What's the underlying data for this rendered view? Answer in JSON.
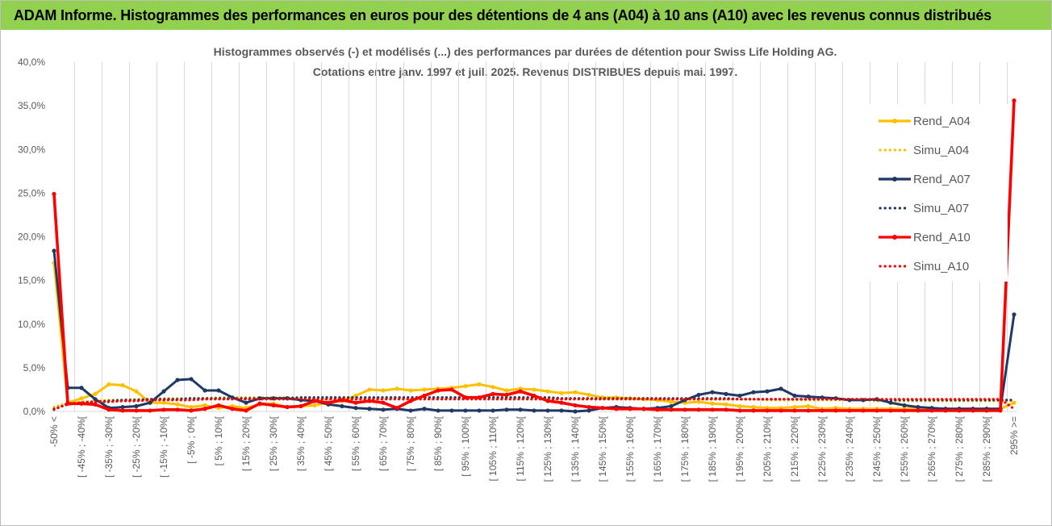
{
  "banner": {
    "title": "ADAM Informe. Histogrammes des performances en euros pour des détentions de 4 ans (A04) à 10 ans (A10) avec les revenus connus distribués"
  },
  "colors": {
    "banner_bg": "#92d050",
    "A04": "#ffc000",
    "A07": "#1f3864",
    "A10": "#ff0000",
    "grid": "#d9d9d9",
    "text": "#595959"
  },
  "chart_data": {
    "type": "line",
    "title_lines": [
      "Histogrammes observés (-) et modélisés (...) des performances par durées de détention pour Swiss Life Holding AG.",
      "Cotations entre janv. 1997 et juil. 2025. Revenus DISTRIBUES depuis mai. 1997."
    ],
    "y_ticks": [
      "0,0%",
      "5,0%",
      "10,0%",
      "15,0%",
      "20,0%",
      "25,0%",
      "30,0%",
      "35,0%",
      "40,0%"
    ],
    "ylim": [
      0,
      40
    ],
    "grid": "vertical",
    "legend_position": "right",
    "categories": [
      "-50% <",
      "[ -50% ; -45%[",
      "[ -45% ; -40%[",
      "[ -40% ; -35%[",
      "[ -35% ; -30%[",
      "[ -30% ; -25%[",
      "[ -25% ; -20%[",
      "[ -20% ; -15%[",
      "[ -15% ; -10%[",
      "[ -10% ; -5%[",
      "[ -5% ; 0%[",
      "[ 0% ; 5%[",
      "[ 5% ; 10%[",
      "[ 10% ; 15%[",
      "[ 15% ; 20%[",
      "[ 20% ; 25%[",
      "[ 25% ; 30%[",
      "[ 30% ; 35%[",
      "[ 35% ; 40%[",
      "[ 40% ; 45%[",
      "[ 45% ; 50%[",
      "[ 50% ; 55%[",
      "[ 55% ; 60%[",
      "[ 60% ; 65%[",
      "[ 65% ; 70%[",
      "[ 70% ; 75%[",
      "[ 75% ; 80%[",
      "[ 80% ; 85%[",
      "[ 85% ; 90%[",
      "[ 90% ; 95%[",
      "[ 95% ; 100%[",
      "[ 100% ; 105%[",
      "[ 105% ; 110%[",
      "[ 110% ; 115%[",
      "[ 115% ; 120%[",
      "[ 120% ; 125%[",
      "[ 125% ; 130%[",
      "[ 130% ; 135%[",
      "[ 135% ; 140%[",
      "[ 140% ; 145%[",
      "[ 145% ; 150%[",
      "[ 150% ; 155%[",
      "[ 155% ; 160%[",
      "[ 160% ; 165%[",
      "[ 165% ; 170%[",
      "[ 170% ; 175%[",
      "[ 175% ; 180%[",
      "[ 180% ; 185%[",
      "[ 185% ; 190%[",
      "[ 190% ; 195%[",
      "[ 195% ; 200%[",
      "[ 200% ; 205%[",
      "[ 205% ; 210%[",
      "[ 210% ; 215%[",
      "[ 215% ; 220%[",
      "[ 220% ; 225%[",
      "[ 225% ; 230%[",
      "[ 230% ; 235%[",
      "[ 235% ; 240%[",
      "[ 240% ; 245%[",
      "[ 245% ; 250%[",
      "[ 250% ; 255%[",
      "[ 255% ; 260%[",
      "[ 260% ; 265%[",
      "[ 265% ; 270%[",
      "[ 270% ; 275%[",
      "[ 275% ; 280%[",
      "[ 280% ; 285%[",
      "[ 285% ; 290%[",
      "[ 290% ; 295%[",
      "295% >="
    ],
    "series": [
      {
        "name": "Rend_A04",
        "style": "solid",
        "color": "#ffc000",
        "values": [
          17.0,
          1.0,
          1.5,
          2.0,
          3.1,
          3.0,
          2.3,
          1.0,
          1.0,
          0.8,
          0.5,
          0.7,
          0.4,
          0.6,
          0.4,
          0.8,
          0.9,
          0.5,
          0.6,
          0.7,
          1.0,
          1.2,
          1.8,
          2.5,
          2.4,
          2.6,
          2.4,
          2.5,
          2.6,
          2.7,
          2.9,
          3.1,
          2.8,
          2.4,
          2.6,
          2.5,
          2.3,
          2.1,
          2.2,
          1.9,
          1.6,
          1.6,
          1.5,
          1.4,
          1.3,
          1.1,
          1.0,
          1.1,
          0.9,
          0.8,
          0.6,
          0.5,
          0.4,
          0.4,
          0.5,
          0.6,
          0.3,
          0.4,
          0.3,
          0.3,
          0.3,
          0.3,
          0.3,
          0.3,
          0.3,
          0.3,
          0.3,
          0.3,
          0.3,
          0.3,
          1.0
        ]
      },
      {
        "name": "Simu_A04",
        "style": "dotted",
        "color": "#ffc000",
        "values": [
          0.5,
          1.0,
          1.1,
          1.2,
          1.3,
          1.3,
          1.4,
          1.4,
          1.5,
          1.5,
          1.5,
          1.5,
          1.6,
          1.6,
          1.6,
          1.6,
          1.6,
          1.6,
          1.6,
          1.6,
          1.6,
          1.6,
          1.6,
          1.6,
          1.6,
          1.6,
          1.6,
          1.6,
          1.6,
          1.6,
          1.6,
          1.6,
          1.6,
          1.6,
          1.6,
          1.6,
          1.6,
          1.5,
          1.5,
          1.5,
          1.5,
          1.5,
          1.5,
          1.5,
          1.5,
          1.4,
          1.4,
          1.4,
          1.4,
          1.4,
          1.4,
          1.4,
          1.3,
          1.3,
          1.3,
          1.3,
          1.3,
          1.3,
          1.3,
          1.3,
          1.2,
          1.2,
          1.2,
          1.2,
          1.2,
          1.2,
          1.2,
          1.2,
          1.2,
          1.2,
          1.2
        ]
      },
      {
        "name": "Rend_A07",
        "style": "solid",
        "color": "#1f3864",
        "values": [
          18.4,
          2.7,
          2.7,
          1.4,
          0.4,
          0.5,
          0.6,
          1.0,
          2.3,
          3.6,
          3.7,
          2.4,
          2.4,
          1.6,
          1.0,
          1.5,
          1.5,
          1.5,
          1.3,
          1.2,
          0.8,
          0.6,
          0.4,
          0.3,
          0.2,
          0.3,
          0.1,
          0.3,
          0.1,
          0.1,
          0.1,
          0.1,
          0.1,
          0.2,
          0.2,
          0.1,
          0.1,
          0.1,
          0.0,
          0.1,
          0.4,
          0.5,
          0.4,
          0.3,
          0.4,
          0.6,
          1.3,
          1.9,
          2.2,
          2.0,
          1.8,
          2.2,
          2.3,
          2.6,
          1.8,
          1.7,
          1.6,
          1.5,
          1.3,
          1.3,
          1.4,
          1.0,
          0.7,
          0.5,
          0.4,
          0.3,
          0.3,
          0.3,
          0.3,
          0.3,
          11.1
        ]
      },
      {
        "name": "Simu_A07",
        "style": "dotted",
        "color": "#1f3864",
        "values": [
          0.3,
          0.8,
          1.0,
          1.1,
          1.2,
          1.3,
          1.3,
          1.4,
          1.4,
          1.4,
          1.5,
          1.5,
          1.5,
          1.5,
          1.5,
          1.5,
          1.5,
          1.5,
          1.6,
          1.6,
          1.6,
          1.6,
          1.6,
          1.6,
          1.6,
          1.6,
          1.6,
          1.6,
          1.6,
          1.6,
          1.6,
          1.6,
          1.6,
          1.6,
          1.6,
          1.6,
          1.6,
          1.5,
          1.5,
          1.5,
          1.5,
          1.5,
          1.5,
          1.5,
          1.5,
          1.5,
          1.5,
          1.5,
          1.5,
          1.5,
          1.4,
          1.4,
          1.4,
          1.4,
          1.4,
          1.4,
          1.4,
          1.4,
          1.4,
          1.4,
          1.3,
          1.3,
          1.3,
          1.3,
          1.3,
          1.3,
          1.3,
          1.3,
          1.3,
          1.3,
          1.3
        ]
      },
      {
        "name": "Rend_A10",
        "style": "solid",
        "color": "#ff0000",
        "values": [
          24.9,
          0.9,
          0.9,
          0.8,
          0.2,
          0.1,
          0.1,
          0.1,
          0.2,
          0.2,
          0.1,
          0.3,
          0.7,
          0.3,
          0.1,
          0.9,
          0.7,
          0.5,
          0.6,
          1.2,
          1.0,
          1.3,
          1.0,
          1.2,
          1.0,
          0.4,
          1.2,
          1.8,
          2.4,
          2.5,
          1.6,
          1.6,
          2.0,
          1.9,
          2.3,
          1.8,
          1.2,
          1.0,
          0.7,
          0.5,
          0.4,
          0.3,
          0.3,
          0.3,
          0.2,
          0.2,
          0.2,
          0.2,
          0.2,
          0.2,
          0.1,
          0.1,
          0.1,
          0.1,
          0.1,
          0.1,
          0.1,
          0.1,
          0.1,
          0.1,
          0.1,
          0.1,
          0.1,
          0.1,
          0.1,
          0.1,
          0.1,
          0.1,
          0.1,
          0.1,
          35.6
        ]
      },
      {
        "name": "Simu_A10",
        "style": "dotted",
        "color": "#ff0000",
        "values": [
          0.2,
          0.9,
          1.0,
          1.1,
          1.1,
          1.2,
          1.2,
          1.3,
          1.3,
          1.3,
          1.3,
          1.4,
          1.4,
          1.4,
          1.4,
          1.4,
          1.4,
          1.4,
          1.4,
          1.4,
          1.4,
          1.4,
          1.4,
          1.4,
          1.4,
          1.4,
          1.4,
          1.4,
          1.4,
          1.4,
          1.4,
          1.4,
          1.4,
          1.4,
          1.4,
          1.4,
          1.4,
          1.4,
          1.4,
          1.4,
          1.4,
          1.4,
          1.4,
          1.4,
          1.4,
          1.4,
          1.4,
          1.4,
          1.4,
          1.4,
          1.4,
          1.4,
          1.4,
          1.4,
          1.4,
          1.4,
          1.4,
          1.4,
          1.4,
          1.4,
          1.4,
          1.4,
          1.4,
          1.4,
          1.4,
          1.4,
          1.4,
          1.4,
          1.4,
          1.4,
          0.3
        ]
      }
    ]
  }
}
